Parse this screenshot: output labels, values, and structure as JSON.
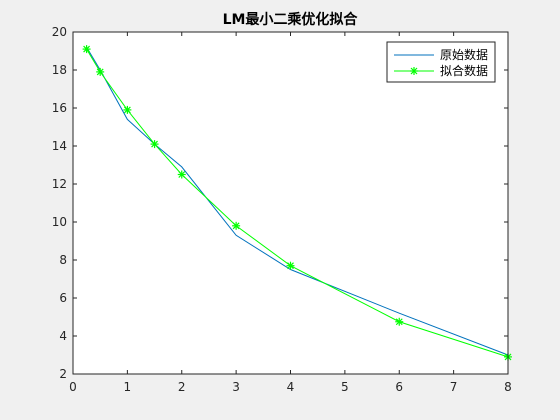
{
  "chart_data": {
    "type": "line",
    "title": "LM最小二乘优化拟合",
    "xlabel": "",
    "ylabel": "",
    "xlim": [
      0,
      8
    ],
    "ylim": [
      2,
      20
    ],
    "x_ticks": [
      0,
      1,
      2,
      3,
      4,
      5,
      6,
      7,
      8
    ],
    "y_ticks": [
      2,
      4,
      6,
      8,
      10,
      12,
      14,
      16,
      18,
      20
    ],
    "grid": false,
    "legend_position": "top-right",
    "series": [
      {
        "name": "原始数据",
        "color": "#0072bd",
        "marker": "none",
        "x": [
          0.25,
          0.5,
          1,
          1.5,
          2,
          3,
          4,
          6,
          8
        ],
        "y": [
          19.2,
          18.0,
          15.4,
          14.1,
          12.9,
          9.3,
          7.5,
          5.2,
          3.0
        ]
      },
      {
        "name": "拟合数据",
        "color": "#00ff00",
        "marker": "asterisk",
        "x": [
          0.25,
          0.5,
          1,
          1.5,
          2,
          3,
          4,
          6,
          8
        ],
        "y": [
          19.1,
          17.9,
          15.9,
          14.1,
          12.5,
          9.8,
          7.7,
          4.75,
          2.9
        ]
      }
    ]
  }
}
